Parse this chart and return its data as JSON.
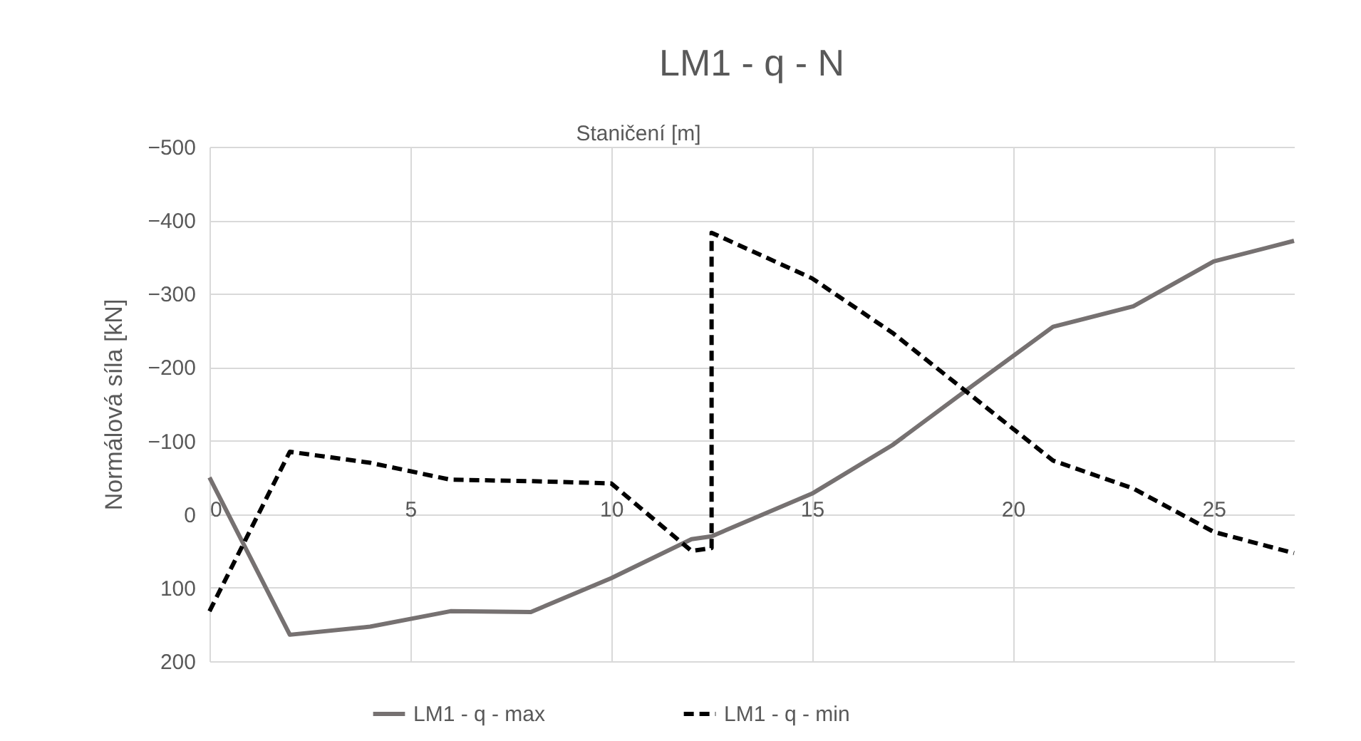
{
  "chart_data": {
    "type": "line",
    "title": "LM1 - q - N",
    "xlabel": "Staničení [m]",
    "ylabel": "Normálová síla [kN]",
    "xlim": [
      0,
      27
    ],
    "xticks": [
      0,
      5,
      10,
      15,
      20,
      25
    ],
    "ylim": [
      200,
      -500
    ],
    "yticks": [
      -500,
      -400,
      -300,
      -200,
      -100,
      0,
      100,
      200
    ],
    "grid": true,
    "legend": "bottom",
    "marker": "none",
    "series": [
      {
        "name": "LM1 - q - max",
        "color": "#767171",
        "line_style": "solid",
        "x": [
          0,
          2,
          4,
          6,
          8,
          10,
          12,
          12.5,
          15,
          17,
          19,
          21,
          23,
          25,
          27
        ],
        "values": [
          -50,
          164,
          153,
          132,
          133,
          87,
          34,
          30,
          -28,
          -94,
          -175,
          -255,
          -283,
          -344,
          -372
        ]
      },
      {
        "name": "LM1 - q - min",
        "color": "#000000",
        "line_style": "dashed",
        "x": [
          0,
          2,
          4,
          6,
          8,
          10,
          12,
          12.5,
          12.5,
          15,
          17,
          19,
          21,
          23,
          25,
          27
        ],
        "values": [
          132,
          -85,
          -70,
          -47,
          -45,
          -42,
          50,
          46,
          -383,
          -321,
          -247,
          -160,
          -73,
          -35,
          24,
          53
        ]
      }
    ]
  }
}
